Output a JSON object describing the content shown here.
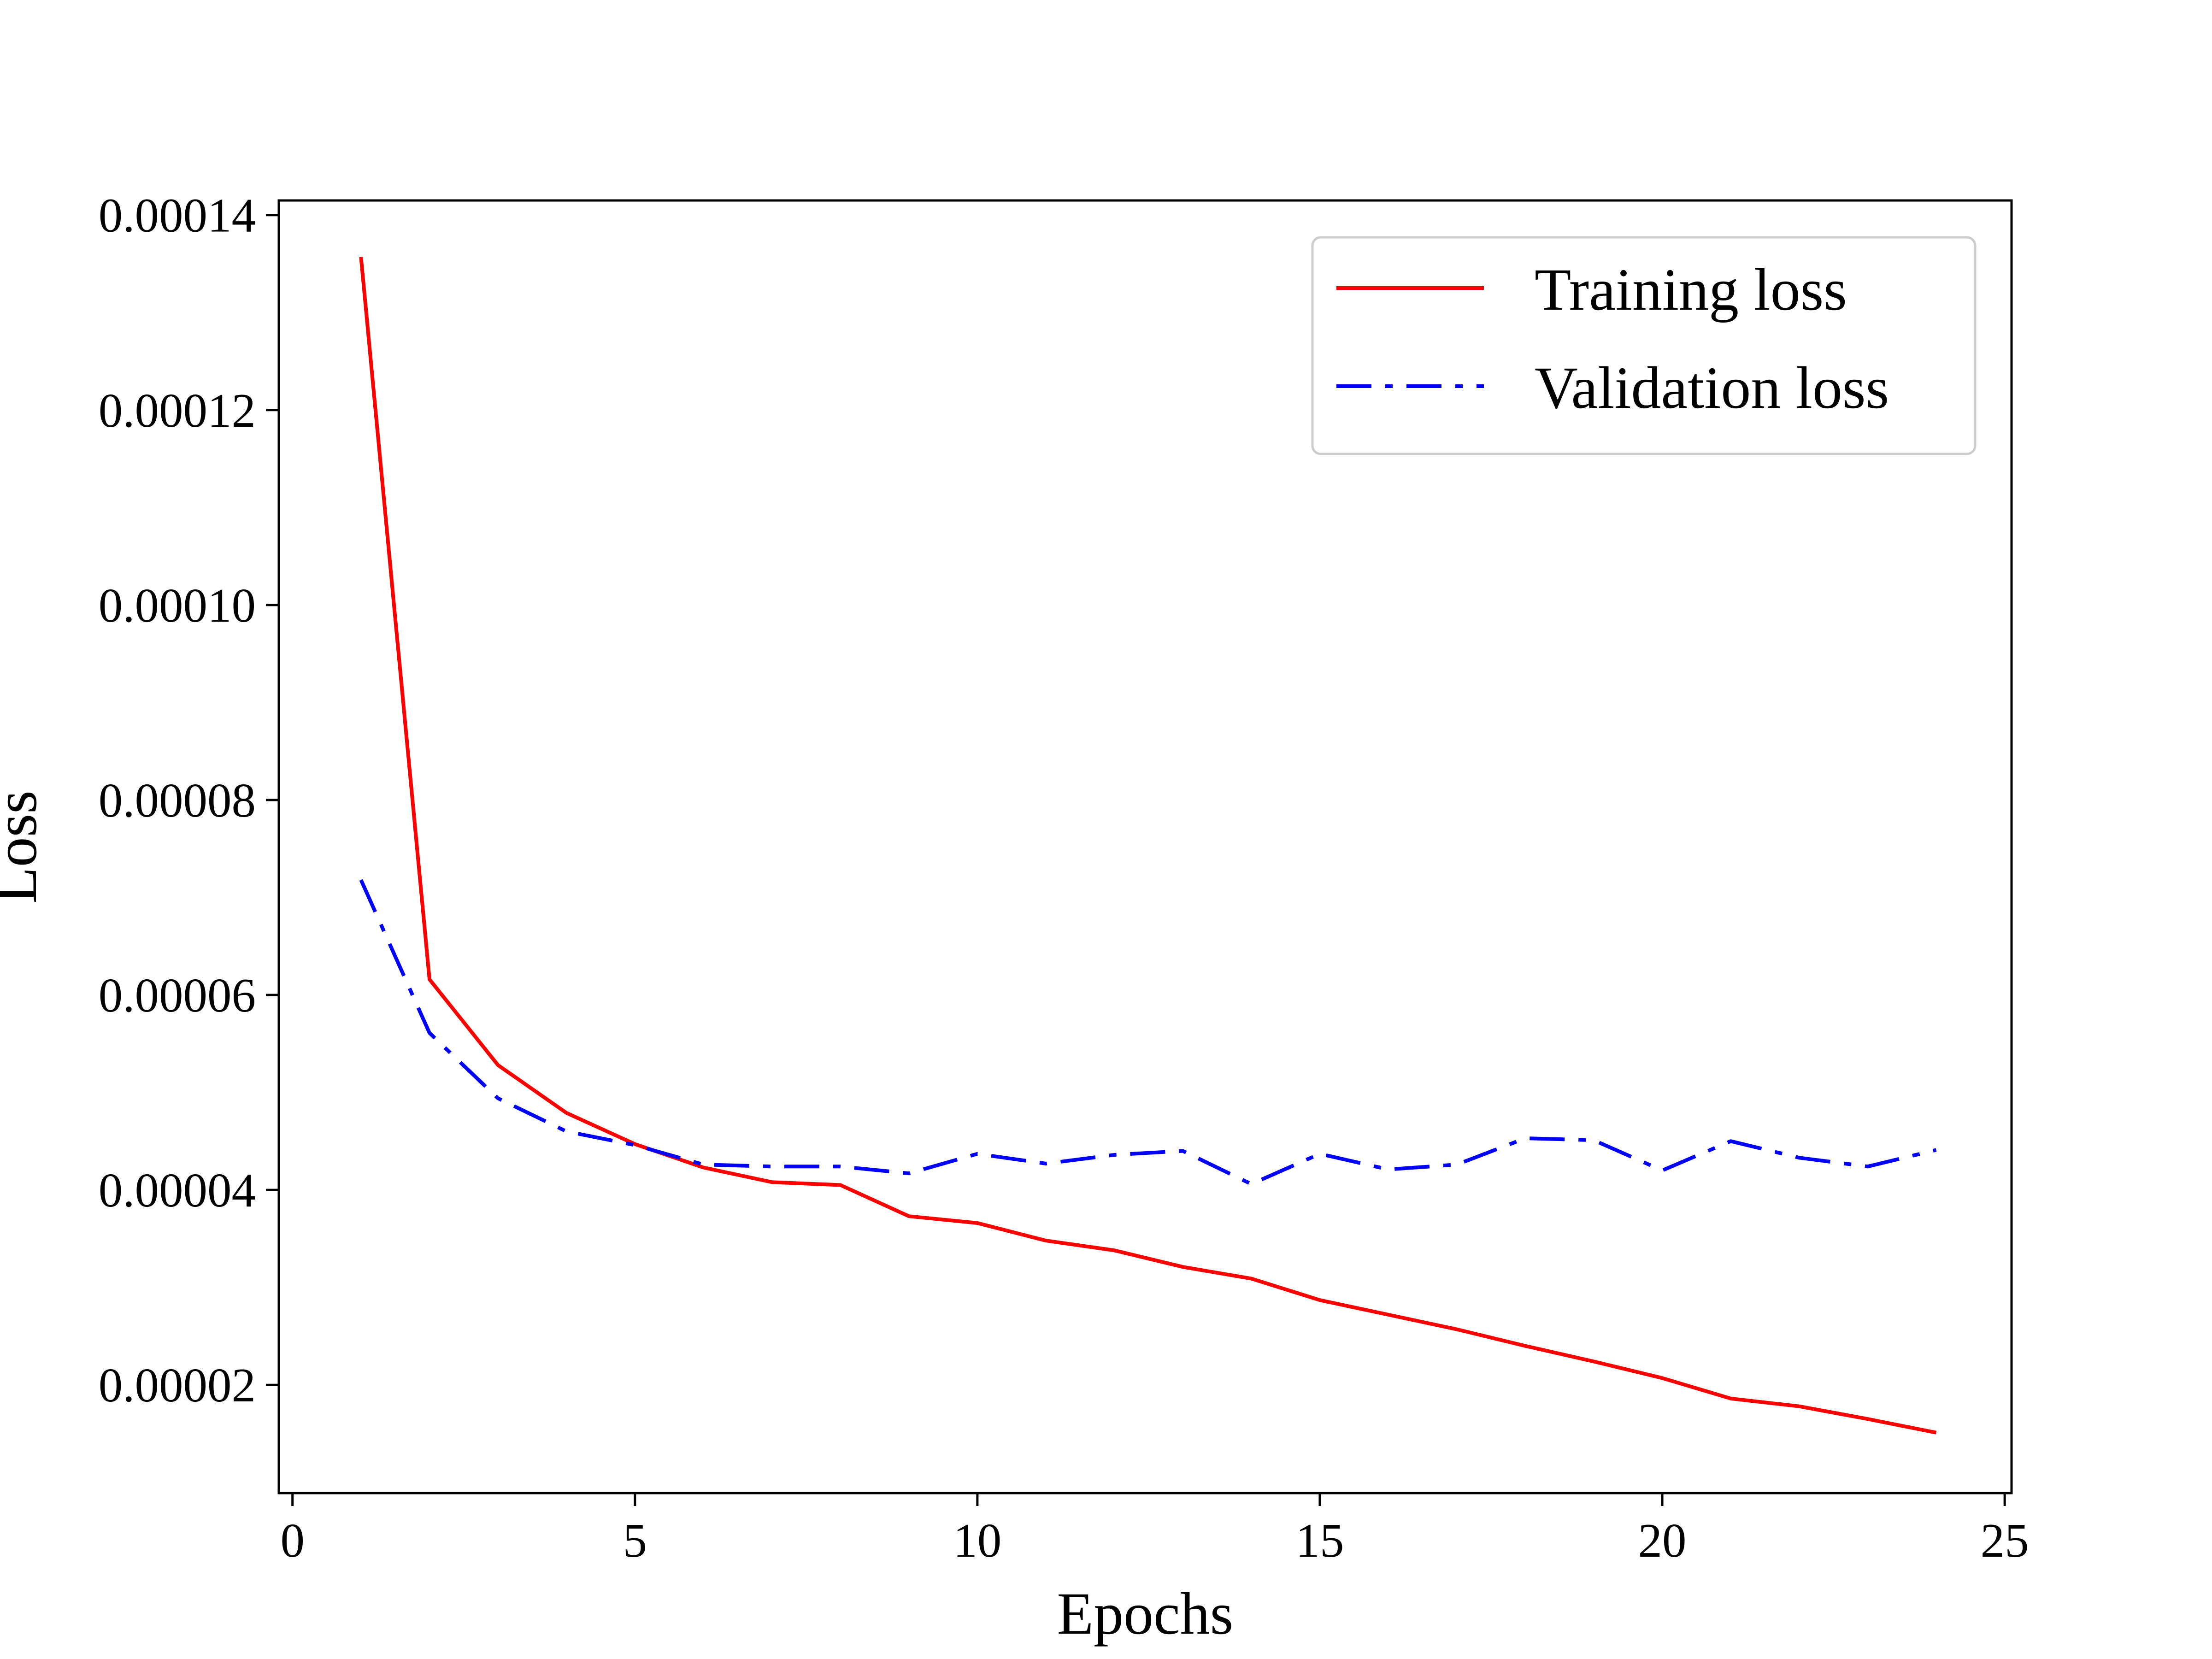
{
  "chart_data": {
    "type": "line",
    "title": "",
    "xlabel": "Epochs",
    "ylabel": "Loss",
    "xlim": [
      -0.2,
      25.1
    ],
    "ylim": [
      8.9e-06,
      0.0001415
    ],
    "xticks": [
      0,
      5,
      10,
      15,
      20,
      25
    ],
    "xtick_labels": [
      "0",
      "5",
      "10",
      "15",
      "20",
      "25"
    ],
    "yticks": [
      2e-05,
      4e-05,
      6e-05,
      8e-05,
      0.0001,
      0.00012,
      0.00014
    ],
    "ytick_labels": [
      "0.00002",
      "0.00004",
      "0.00006",
      "0.00008",
      "0.00010",
      "0.00012",
      "0.00014"
    ],
    "grid": false,
    "legend_position": "top-right",
    "x": [
      1,
      2,
      3,
      4,
      5,
      6,
      7,
      8,
      9,
      10,
      11,
      12,
      13,
      14,
      15,
      16,
      17,
      18,
      19,
      20,
      21,
      22,
      23,
      24
    ],
    "series": [
      {
        "name": "Training loss",
        "color": "#ff0000",
        "style": "solid",
        "values": [
          0.0001357,
          6.16e-05,
          5.28e-05,
          4.79e-05,
          4.47e-05,
          4.23e-05,
          4.08e-05,
          4.05e-05,
          3.73e-05,
          3.66e-05,
          3.48e-05,
          3.38e-05,
          3.21e-05,
          3.09e-05,
          2.87e-05,
          2.72e-05,
          2.57e-05,
          2.4e-05,
          2.24e-05,
          2.07e-05,
          1.86e-05,
          1.78e-05,
          1.65e-05,
          1.51e-05
        ]
      },
      {
        "name": "Validation loss",
        "color": "#0000ff",
        "style": "dashdot",
        "values": [
          7.18e-05,
          5.61e-05,
          4.94e-05,
          4.6e-05,
          4.46e-05,
          4.26e-05,
          4.24e-05,
          4.24e-05,
          4.17e-05,
          4.37e-05,
          4.27e-05,
          4.36e-05,
          4.4e-05,
          4.06e-05,
          4.37e-05,
          4.21e-05,
          4.26e-05,
          4.53e-05,
          4.51e-05,
          4.2e-05,
          4.5e-05,
          4.33e-05,
          4.24e-05,
          4.41e-05
        ]
      }
    ]
  }
}
